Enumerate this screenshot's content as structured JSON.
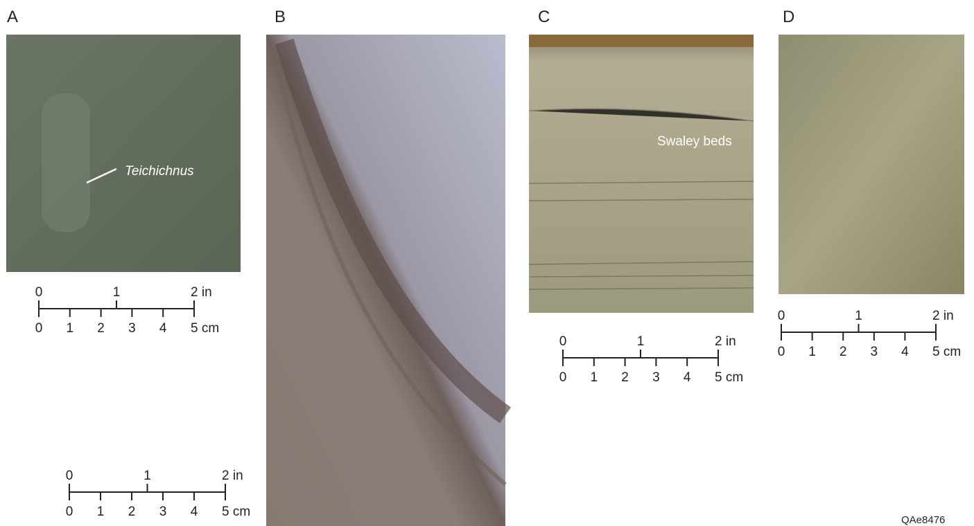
{
  "panels": [
    {
      "label": "A",
      "annotation": "Teichichnus"
    },
    {
      "label": "B"
    },
    {
      "label": "C",
      "annotation": "Swaley beds"
    },
    {
      "label": "D"
    }
  ],
  "scale_bars": [
    {
      "inch_labels": [
        "0",
        "1",
        "2 in"
      ],
      "cm_labels": [
        "0",
        "1",
        "2",
        "3",
        "4",
        "5 cm"
      ]
    },
    {
      "inch_labels": [
        "0",
        "1",
        "2 in"
      ],
      "cm_labels": [
        "0",
        "1",
        "2",
        "3",
        "4",
        "5 cm"
      ]
    },
    {
      "inch_labels": [
        "0",
        "1",
        "2 in"
      ],
      "cm_labels": [
        "0",
        "1",
        "2",
        "3",
        "4",
        "5 cm"
      ]
    },
    {
      "inch_labels": [
        "0",
        "1",
        "2 in"
      ],
      "cm_labels": [
        "0",
        "1",
        "2",
        "3",
        "4",
        "5 cm"
      ]
    }
  ],
  "figure_id": "QAe8476"
}
